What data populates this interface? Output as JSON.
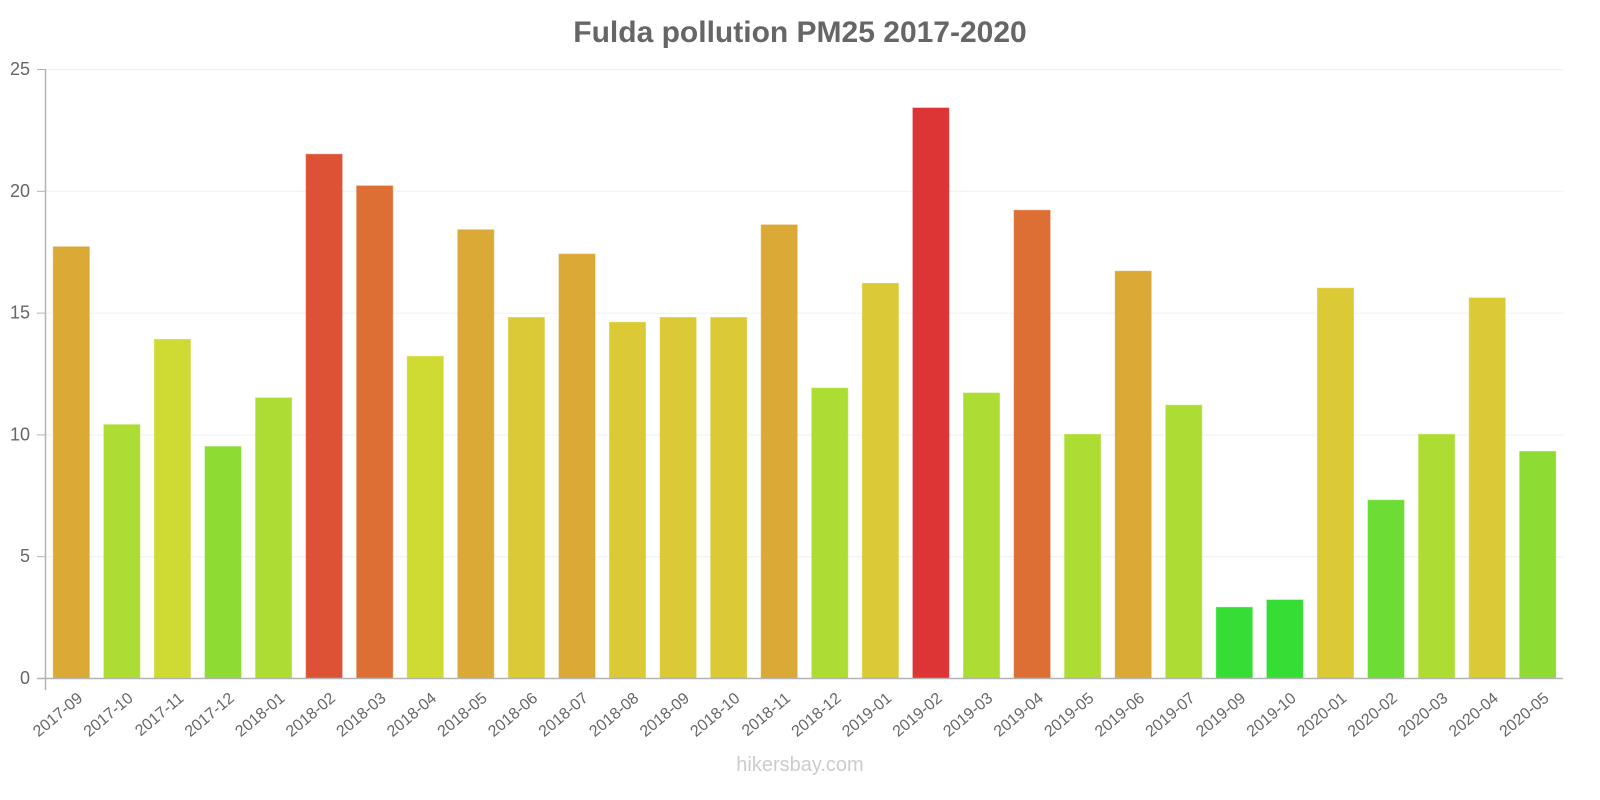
{
  "header": {
    "title": "Fulda pollution PM25 2017-2020"
  },
  "footer": {
    "watermark": "hikersbay.com"
  },
  "chart_data": {
    "type": "bar",
    "title": "Fulda pollution PM25 2017-2020",
    "xlabel": "",
    "ylabel": "",
    "ylim": [
      0,
      25
    ],
    "yticks": [
      0,
      5,
      10,
      15,
      20,
      25
    ],
    "grid": true,
    "legend": null,
    "categories": [
      "2017-09",
      "2017-10",
      "2017-11",
      "2017-12",
      "2018-01",
      "2018-02",
      "2018-03",
      "2018-04",
      "2018-05",
      "2018-06",
      "2018-07",
      "2018-08",
      "2018-09",
      "2018-10",
      "2018-11",
      "2018-12",
      "2019-01",
      "2019-02",
      "2019-03",
      "2019-04",
      "2019-05",
      "2019-06",
      "2019-07",
      "2019-09",
      "2019-10",
      "2020-01",
      "2020-02",
      "2020-03",
      "2020-04",
      "2020-05"
    ],
    "values": [
      17.7,
      10.4,
      13.9,
      9.5,
      11.5,
      21.5,
      20.2,
      13.2,
      18.4,
      14.8,
      17.4,
      14.6,
      14.8,
      14.8,
      18.6,
      11.9,
      16.2,
      23.4,
      11.7,
      19.2,
      10.0,
      16.7,
      11.2,
      2.9,
      3.2,
      16.0,
      7.3,
      10.0,
      15.6,
      9.3
    ],
    "colors": [
      "#dba936",
      "#addd33",
      "#cfdb33",
      "#8ddb33",
      "#addd33",
      "#dd5135",
      "#dd6f35",
      "#cfdb33",
      "#dba936",
      "#dbc935",
      "#dba936",
      "#dbc935",
      "#dbc935",
      "#dbc935",
      "#dba936",
      "#addd33",
      "#dbc935",
      "#dd3535",
      "#addd33",
      "#dd6f35",
      "#addd33",
      "#dba936",
      "#addd33",
      "#35dd35",
      "#35dd35",
      "#dbc935",
      "#6ddd35",
      "#addd33",
      "#dbc935",
      "#8ddb33"
    ]
  }
}
